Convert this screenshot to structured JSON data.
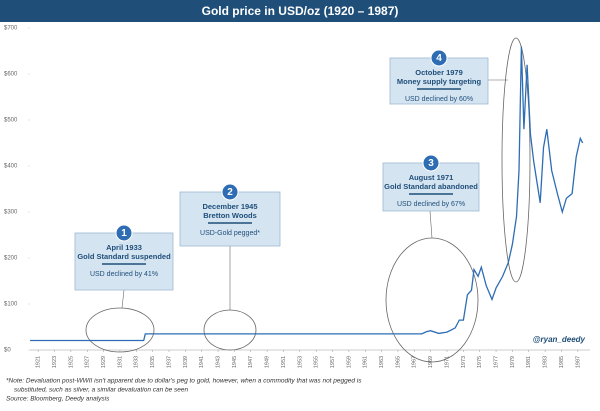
{
  "chart_data": {
    "type": "line",
    "title": "Gold price in USD/oz (1920 – 1987)",
    "x": [
      1920,
      1933.9,
      1934.1,
      1967.9,
      1968.5,
      1969,
      1970,
      1971,
      1972,
      1972.5,
      1973,
      1973.5,
      1974,
      1974.3,
      1974.8,
      1975.2,
      1975.8,
      1976.5,
      1977,
      1977.8,
      1978.5,
      1979,
      1979.5,
      1979.8,
      1980.1,
      1980.4,
      1980.8,
      1981.2,
      1981.6,
      1982.4,
      1982.8,
      1983.2,
      1983.8,
      1984.5,
      1985.1,
      1985.6,
      1986.3,
      1986.8,
      1987.3,
      1987.6
    ],
    "series": [
      {
        "color": "#2e6db4",
        "values": [
          20.67,
          20.67,
          35,
          35,
          40,
          42,
          36,
          39,
          48,
          65,
          65,
          120,
          130,
          175,
          160,
          180,
          140,
          110,
          135,
          160,
          190,
          230,
          290,
          390,
          660,
          480,
          620,
          470,
          410,
          320,
          440,
          480,
          390,
          340,
          300,
          330,
          340,
          420,
          460,
          450
        ]
      }
    ],
    "xlim": [
      1920,
      1988
    ],
    "xticks": [
      1921,
      1923,
      1925,
      1927,
      1929,
      1931,
      1933,
      1935,
      1937,
      1939,
      1941,
      1943,
      1945,
      1947,
      1949,
      1951,
      1953,
      1955,
      1957,
      1959,
      1961,
      1963,
      1965,
      1967,
      1969,
      1971,
      1973,
      1975,
      1977,
      1979,
      1981,
      1983,
      1985,
      1987
    ],
    "ylim": [
      0,
      700
    ],
    "yticks": [
      {
        "value": 0,
        "label": "$0"
      },
      {
        "value": 100,
        "label": "$100"
      },
      {
        "value": 200,
        "label": "$200"
      },
      {
        "value": 300,
        "label": "$300"
      },
      {
        "value": 400,
        "label": "$400"
      },
      {
        "value": 500,
        "label": "$500"
      },
      {
        "value": 600,
        "label": "$600"
      },
      {
        "value": 700,
        "label": "$700"
      }
    ],
    "grid": false,
    "annotations": [
      {
        "number": "1",
        "title": "April 1933",
        "subtitle": "Gold Standard suspended",
        "note": "USD declined by 41%"
      },
      {
        "number": "2",
        "title": "December 1945",
        "subtitle": "Bretton Woods",
        "note": "USD-Gold pegged*"
      },
      {
        "number": "3",
        "title": "August 1971",
        "subtitle": "Gold Standard abandoned",
        "note": "USD declined by 67%"
      },
      {
        "number": "4",
        "title": "October 1979",
        "subtitle": "Money supply targeting",
        "note": "USD declined by 60%"
      }
    ],
    "watermark": "@ryan_deedy",
    "notes": [
      "*Note: Devaluation post-WWII isn't apparent due to dollar's peg to gold, however, when a commodity that was not pegged is",
      "substituted, such as silver, a similar devaluation can be seen",
      "Source: Bloomberg, Deedy analysis"
    ]
  }
}
